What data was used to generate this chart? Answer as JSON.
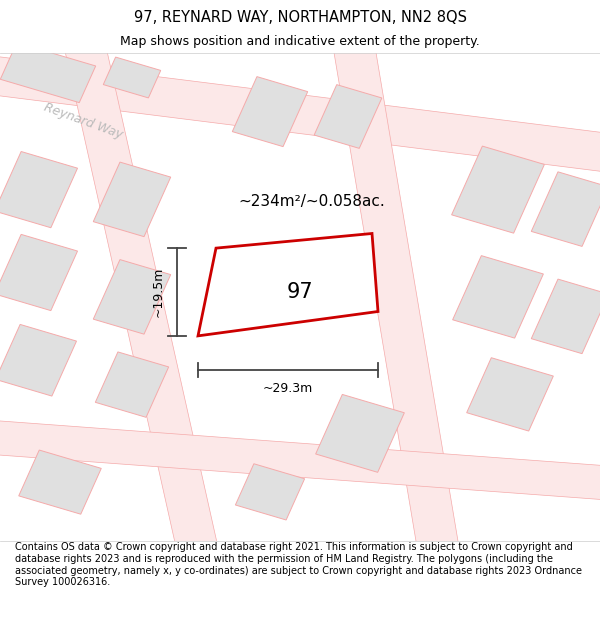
{
  "title_line1": "97, REYNARD WAY, NORTHAMPTON, NN2 8QS",
  "title_line2": "Map shows position and indicative extent of the property.",
  "footer_text": "Contains OS data © Crown copyright and database right 2021. This information is subject to Crown copyright and database rights 2023 and is reproduced with the permission of HM Land Registry. The polygons (including the associated geometry, namely x, y co-ordinates) are subject to Crown copyright and database rights 2023 Ordnance Survey 100026316.",
  "area_label": "~234m²/~0.058ac.",
  "number_label": "97",
  "dim_height": "~19.5m",
  "dim_width": "~29.3m",
  "street_label": "Reynard Way",
  "bg_color": "#ececec",
  "plot_fill": "#ffffff",
  "plot_edge": "#cc0000",
  "block_fill": "#e0e0e0",
  "block_edge": "#f5aaaa",
  "road_fill": "#fce8e8",
  "road_edge": "#f5aaaa",
  "title_fontsize": 10.5,
  "subtitle_fontsize": 9,
  "footer_fontsize": 7.0,
  "street_label_color": "#bbbbbb",
  "dim_line_color": "#444444",
  "text_color": "#000000"
}
